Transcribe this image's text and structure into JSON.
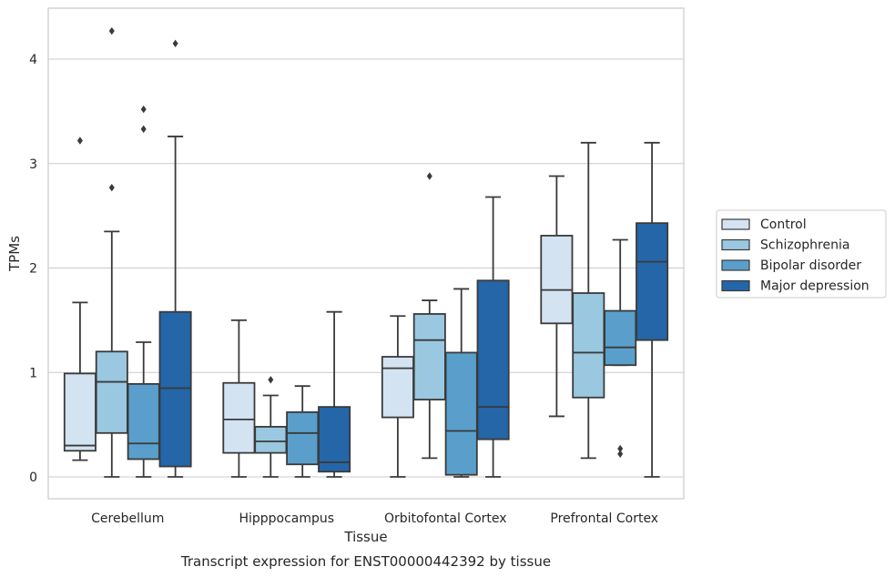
{
  "caption": "Transcript expression for ENST00000442392 by tissue",
  "chart_data": {
    "type": "boxplot",
    "xlabel": "Tissue",
    "ylabel": "TPMs",
    "ylim": [
      -0.2,
      4.5
    ],
    "yticks": [
      0,
      1,
      2,
      3,
      4
    ],
    "grid": "horizontal",
    "legend_position": "right",
    "categories": [
      "Cerebellum",
      "Hipppocampus",
      "Orbitofontal Cortex",
      "Prefrontal Cortex"
    ],
    "series": [
      {
        "name": "Control",
        "color": "#d3e3f2",
        "boxes": [
          {
            "whislo": 0.16,
            "q1": 0.25,
            "med": 0.3,
            "q3": 0.99,
            "whishi": 1.67,
            "fliers": [
              3.22
            ]
          },
          {
            "whislo": 0.0,
            "q1": 0.23,
            "med": 0.55,
            "q3": 0.9,
            "whishi": 1.5,
            "fliers": []
          },
          {
            "whislo": 0.0,
            "q1": 0.57,
            "med": 1.04,
            "q3": 1.15,
            "whishi": 1.54,
            "fliers": []
          },
          {
            "whislo": 0.58,
            "q1": 1.47,
            "med": 1.79,
            "q3": 2.31,
            "whishi": 2.88,
            "fliers": []
          }
        ]
      },
      {
        "name": "Schizophrenia",
        "color": "#9ac8e0",
        "boxes": [
          {
            "whislo": 0.0,
            "q1": 0.42,
            "med": 0.91,
            "q3": 1.2,
            "whishi": 2.35,
            "fliers": [
              4.27,
              2.77
            ]
          },
          {
            "whislo": 0.0,
            "q1": 0.23,
            "med": 0.34,
            "q3": 0.48,
            "whishi": 0.78,
            "fliers": [
              0.93
            ]
          },
          {
            "whislo": 0.18,
            "q1": 0.74,
            "med": 1.31,
            "q3": 1.56,
            "whishi": 1.69,
            "fliers": [
              2.88
            ]
          },
          {
            "whislo": 0.18,
            "q1": 0.76,
            "med": 1.19,
            "q3": 1.76,
            "whishi": 3.2,
            "fliers": []
          }
        ]
      },
      {
        "name": "Bipolar disorder",
        "color": "#5a9fcb",
        "boxes": [
          {
            "whislo": 0.0,
            "q1": 0.17,
            "med": 0.32,
            "q3": 0.89,
            "whishi": 1.29,
            "fliers": [
              3.52,
              3.33
            ]
          },
          {
            "whislo": 0.0,
            "q1": 0.12,
            "med": 0.42,
            "q3": 0.62,
            "whishi": 0.87,
            "fliers": []
          },
          {
            "whislo": 0.0,
            "q1": 0.02,
            "med": 0.44,
            "q3": 1.19,
            "whishi": 1.8,
            "fliers": []
          },
          {
            "whislo": 1.07,
            "q1": 1.07,
            "med": 1.24,
            "q3": 1.59,
            "whishi": 2.27,
            "fliers": [
              0.27,
              0.22
            ]
          }
        ]
      },
      {
        "name": "Major depression",
        "color": "#2466a8",
        "boxes": [
          {
            "whislo": 0.0,
            "q1": 0.1,
            "med": 0.85,
            "q3": 1.58,
            "whishi": 3.26,
            "fliers": [
              4.15
            ]
          },
          {
            "whislo": 0.0,
            "q1": 0.05,
            "med": 0.14,
            "q3": 0.67,
            "whishi": 1.58,
            "fliers": []
          },
          {
            "whislo": 0.0,
            "q1": 0.36,
            "med": 0.67,
            "q3": 1.88,
            "whishi": 2.68,
            "fliers": []
          },
          {
            "whislo": 0.0,
            "q1": 1.31,
            "med": 2.06,
            "q3": 2.43,
            "whishi": 3.2,
            "fliers": []
          }
        ]
      }
    ]
  }
}
